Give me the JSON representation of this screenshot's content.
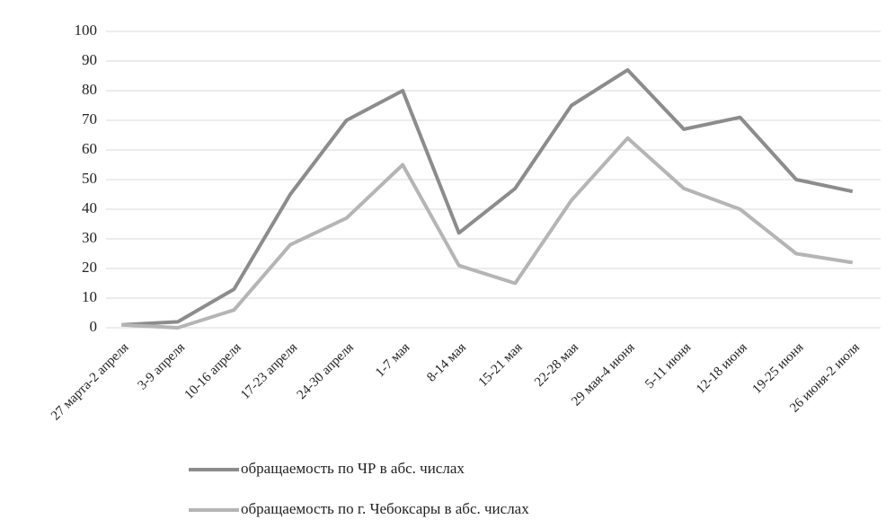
{
  "chart_data": {
    "type": "line",
    "categories": [
      "27 марта-2 апреля",
      "3-9 апреля",
      "10-16 апреля",
      "17-23 апреля",
      "24-30 апреля",
      "1-7 мая",
      "8-14 мая",
      "15-21 мая",
      "22-28 мая",
      "29 мая-4 июня",
      "5-11 июня",
      "12-18 июня",
      "19-25 июня",
      "26 июня-2 июля"
    ],
    "series": [
      {
        "name": "обращаемость по ЧР в абс. числах",
        "color": "#8c8c8c",
        "values": [
          1,
          2,
          13,
          45,
          70,
          80,
          32,
          47,
          75,
          87,
          67,
          71,
          50,
          46
        ]
      },
      {
        "name": "обращаемость по г. Чебоксары в абс. числах",
        "color": "#b5b5b5",
        "values": [
          1,
          0,
          6,
          28,
          37,
          55,
          21,
          15,
          43,
          64,
          47,
          40,
          25,
          22
        ]
      }
    ],
    "ylim": [
      0,
      100
    ],
    "yticks": [
      0,
      10,
      20,
      30,
      40,
      50,
      60,
      70,
      80,
      90,
      100
    ],
    "grid": true,
    "legend": "bottom"
  }
}
